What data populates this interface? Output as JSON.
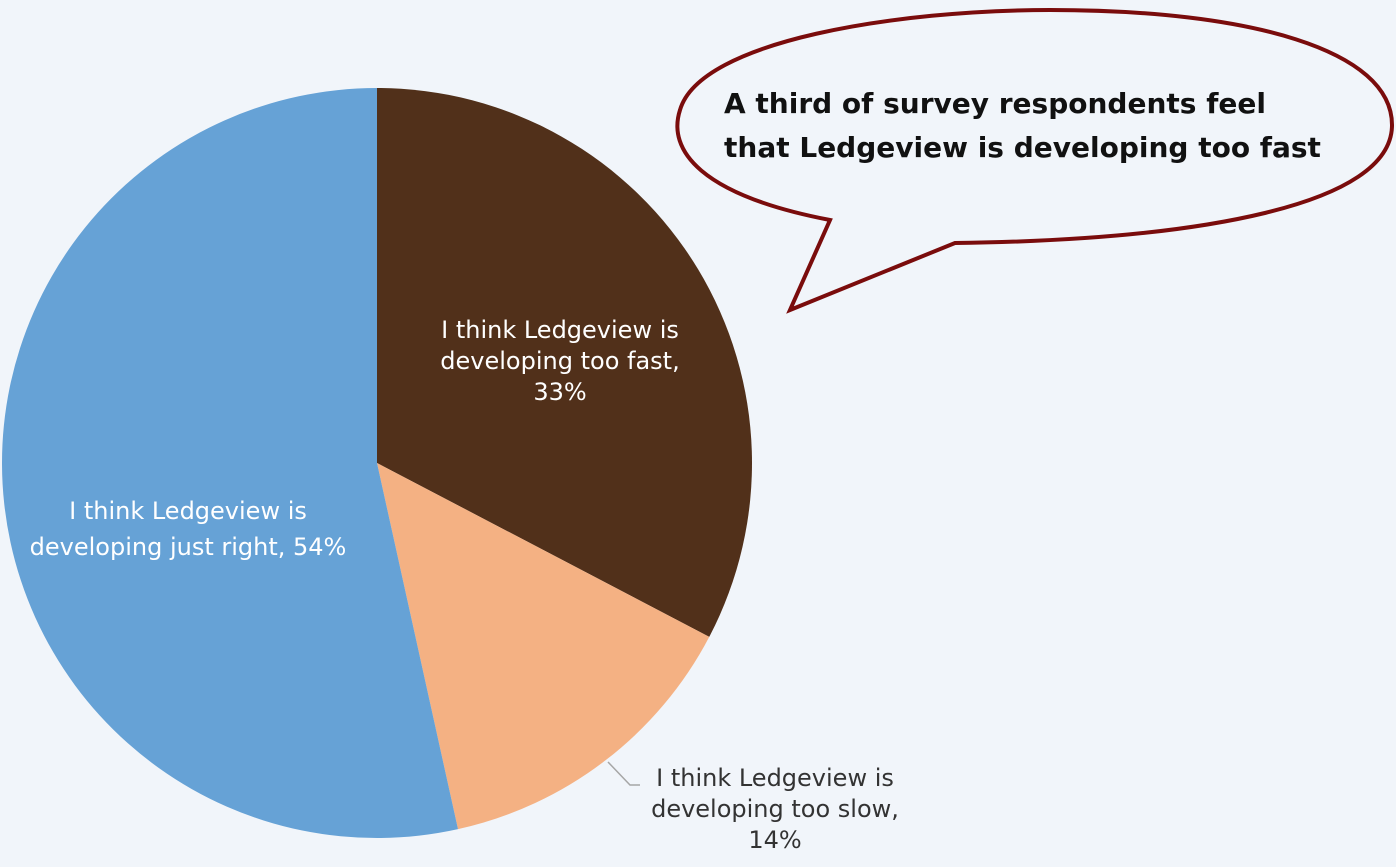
{
  "chart_data": {
    "type": "pie",
    "title": "",
    "slices": [
      {
        "label": "I think Ledgeview is developing too fast",
        "value": 33,
        "value_label": "33%",
        "color": "#51301a",
        "label_lines": [
          "I think Ledgeview is",
          "developing too fast,",
          "33%"
        ]
      },
      {
        "label": "I think Ledgeview is developing too slow",
        "value": 14,
        "value_label": "14%",
        "color": "#f4b183",
        "label_lines": [
          "I think Ledgeview is",
          "developing too slow,",
          "14%"
        ]
      },
      {
        "label": "I think Ledgeview is developing just right",
        "value": 54,
        "value_label": "54%",
        "color": "#66a2d6",
        "label_lines": [
          "I think Ledgeview is",
          "developing just right, 54%"
        ]
      }
    ],
    "start_angle_deg": 0,
    "direction": "clockwise",
    "legend": "none"
  },
  "callout": {
    "lines": [
      "A third of survey respondents feel",
      "that Ledgeview is developing too fast"
    ],
    "border_color": "#7a0c0c",
    "fill_color": "#f1f5fa"
  },
  "colors": {
    "background": "#f1f5fa",
    "inside_label": "#ffffff",
    "outside_label": "#333333",
    "leader_line": "#a6a6a6"
  }
}
